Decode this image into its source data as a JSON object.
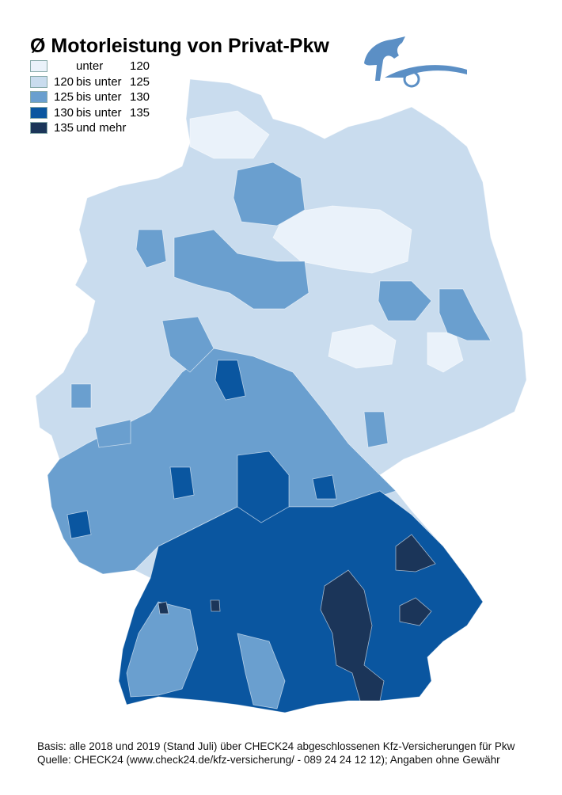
{
  "title": "Ø Motorleistung von Privat-Pkw",
  "legend": [
    {
      "low": "",
      "mid": "unter",
      "high": "120",
      "color": "#eaf2fa"
    },
    {
      "low": "120",
      "mid": "bis unter",
      "high": "125",
      "color": "#c9dcee"
    },
    {
      "low": "125",
      "mid": "bis unter",
      "high": "130",
      "color": "#6a9fcf"
    },
    {
      "low": "130",
      "mid": "bis unter",
      "high": "135",
      "color": "#0a56a0"
    },
    {
      "low": "135",
      "mid": "und mehr",
      "high": "",
      "color": "#1b3559"
    }
  ],
  "footer": {
    "line1": "Basis: alle 2018 und 2019 (Stand Juli) über CHECK24 abgeschlossenen Kfz-Versicherungen für Pkw",
    "line2": "Quelle: CHECK24 (www.check24.de/kfz-versicherung/ - 089 24 24 12 12); Angaben ohne Gewähr"
  },
  "logo": {
    "icon": "horse-car-logo",
    "color": "#5b8fc5"
  }
}
